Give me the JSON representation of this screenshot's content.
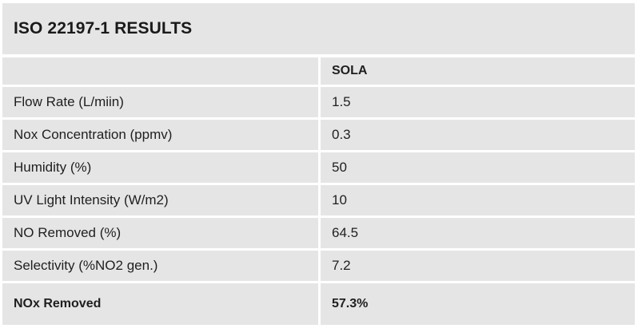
{
  "title": "ISO 22197-1 RESULTS",
  "header": {
    "label": "",
    "column": "SOLA"
  },
  "rows": [
    {
      "label": "Flow Rate (L/miin)",
      "value": "1.5"
    },
    {
      "label": "Nox Concentration (ppmv)",
      "value": "0.3"
    },
    {
      "label": "Humidity (%)",
      "value": "50"
    },
    {
      "label": "UV Light Intensity (W/m2)",
      "value": "10"
    },
    {
      "label": "NO Removed (%)",
      "value": "64.5"
    },
    {
      "label": "Selectivity (%NO2 gen.)",
      "value": "7.2"
    }
  ],
  "total": {
    "label": "NOx Removed",
    "value": "57.3%"
  },
  "colors": {
    "cell_background": "#e6e5e5",
    "text": "#1f1f1f",
    "grid_gap": "#ffffff"
  }
}
